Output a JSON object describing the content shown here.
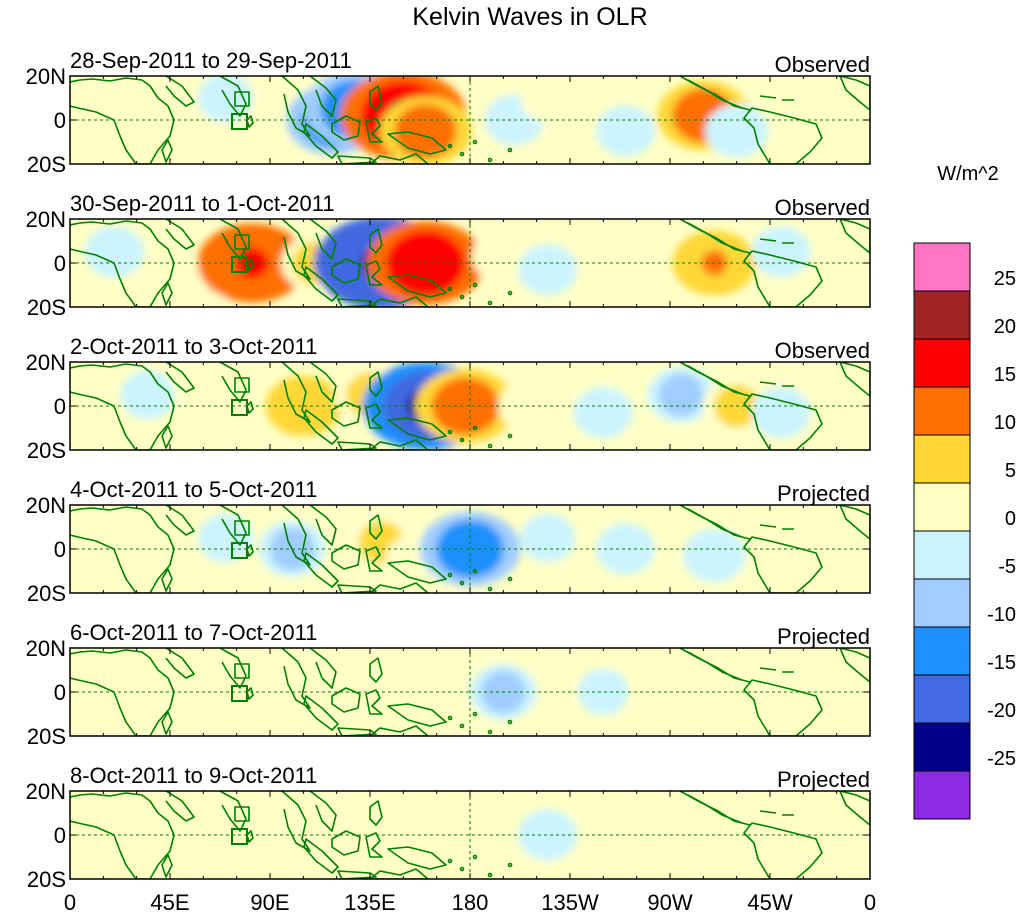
{
  "figure": {
    "title": "Kelvin Waves in OLR",
    "units": "W/m^2",
    "lat_ticks": [
      "20N",
      "0",
      "20S"
    ],
    "lon_ticks": [
      "0",
      "45E",
      "90E",
      "135E",
      "180",
      "135W",
      "90W",
      "45W",
      "0"
    ]
  },
  "panels": [
    {
      "date_range": "28-Sep-2011 to 29-Sep-2011",
      "status": "Observed",
      "anomalies": [
        {
          "lon": 40,
          "lat": 10,
          "value": 3
        },
        {
          "lon": 55,
          "lat": -5,
          "value": 4
        },
        {
          "lon": 70,
          "lat": 10,
          "value": -3
        },
        {
          "lon": 100,
          "lat": 5,
          "value": 3
        },
        {
          "lon": 118,
          "lat": 0,
          "value": -12
        },
        {
          "lon": 128,
          "lat": 5,
          "value": -14
        },
        {
          "lon": 150,
          "lat": 2,
          "value": 20
        },
        {
          "lon": 160,
          "lat": -5,
          "value": 12
        },
        {
          "lon": 200,
          "lat": 0,
          "value": -4
        },
        {
          "lon": 215,
          "lat": 10,
          "value": 3
        },
        {
          "lon": 250,
          "lat": -5,
          "value": -4
        },
        {
          "lon": 285,
          "lat": 2,
          "value": 12
        },
        {
          "lon": 300,
          "lat": -5,
          "value": -5
        }
      ]
    },
    {
      "date_range": "30-Sep-2011 to 1-Oct-2011",
      "status": "Observed",
      "anomalies": [
        {
          "lon": 20,
          "lat": 5,
          "value": -4
        },
        {
          "lon": 60,
          "lat": -10,
          "value": 4
        },
        {
          "lon": 82,
          "lat": 0,
          "value": 16
        },
        {
          "lon": 110,
          "lat": 0,
          "value": 6
        },
        {
          "lon": 140,
          "lat": 0,
          "value": -22
        },
        {
          "lon": 160,
          "lat": 0,
          "value": 18
        },
        {
          "lon": 195,
          "lat": 3,
          "value": 5
        },
        {
          "lon": 215,
          "lat": -3,
          "value": -4
        },
        {
          "lon": 240,
          "lat": 5,
          "value": 4
        },
        {
          "lon": 290,
          "lat": 0,
          "value": 10
        },
        {
          "lon": 320,
          "lat": 5,
          "value": -4
        }
      ]
    },
    {
      "date_range": "2-Oct-2011 to 3-Oct-2011",
      "status": "Observed",
      "anomalies": [
        {
          "lon": 35,
          "lat": 5,
          "value": -3
        },
        {
          "lon": 65,
          "lat": -8,
          "value": 4
        },
        {
          "lon": 105,
          "lat": 0,
          "value": 8
        },
        {
          "lon": 135,
          "lat": 5,
          "value": 7
        },
        {
          "lon": 160,
          "lat": 0,
          "value": -20
        },
        {
          "lon": 178,
          "lat": 0,
          "value": 14
        },
        {
          "lon": 205,
          "lat": 0,
          "value": 3
        },
        {
          "lon": 240,
          "lat": -3,
          "value": -4
        },
        {
          "lon": 275,
          "lat": 5,
          "value": -6
        },
        {
          "lon": 300,
          "lat": 0,
          "value": 6
        },
        {
          "lon": 320,
          "lat": -3,
          "value": -4
        }
      ]
    },
    {
      "date_range": "4-Oct-2011 to 5-Oct-2011",
      "status": "Projected",
      "anomalies": [
        {
          "lon": 30,
          "lat": 0,
          "value": 4
        },
        {
          "lon": 70,
          "lat": 5,
          "value": -3
        },
        {
          "lon": 100,
          "lat": 0,
          "value": -6
        },
        {
          "lon": 140,
          "lat": 3,
          "value": 6
        },
        {
          "lon": 155,
          "lat": -5,
          "value": 4
        },
        {
          "lon": 180,
          "lat": 0,
          "value": -14
        },
        {
          "lon": 215,
          "lat": 5,
          "value": -3
        },
        {
          "lon": 250,
          "lat": 0,
          "value": -4
        },
        {
          "lon": 290,
          "lat": -3,
          "value": -5
        },
        {
          "lon": 340,
          "lat": 0,
          "value": 4
        }
      ]
    },
    {
      "date_range": "6-Oct-2011 to 7-Oct-2011",
      "status": "Projected",
      "anomalies": [
        {
          "lon": 30,
          "lat": 0,
          "value": 2
        },
        {
          "lon": 100,
          "lat": 0,
          "value": 2
        },
        {
          "lon": 195,
          "lat": 0,
          "value": -6
        },
        {
          "lon": 240,
          "lat": 0,
          "value": -2
        },
        {
          "lon": 300,
          "lat": 0,
          "value": 2
        }
      ]
    },
    {
      "date_range": "8-Oct-2011 to 9-Oct-2011",
      "status": "Projected",
      "anomalies": [
        {
          "lon": 60,
          "lat": 0,
          "value": 2
        },
        {
          "lon": 180,
          "lat": 0,
          "value": 2
        },
        {
          "lon": 215,
          "lat": 0,
          "value": -4
        },
        {
          "lon": 280,
          "lat": 0,
          "value": 2
        }
      ]
    }
  ],
  "colorbar": {
    "levels": [
      "25",
      "20",
      "15",
      "10",
      "5",
      "0",
      "-5",
      "-10",
      "-15",
      "-20",
      "-25"
    ],
    "colors": [
      "#ff74c5",
      "#a02424",
      "#ff0000",
      "#ff7000",
      "#ffd837",
      "#ffffc6",
      "#ccf4ff",
      "#a0cdff",
      "#1e90ff",
      "#4169e1",
      "#00008b",
      "#8a2be2"
    ]
  },
  "colors": {
    "coast": "#008000",
    "equator": "#008000"
  }
}
